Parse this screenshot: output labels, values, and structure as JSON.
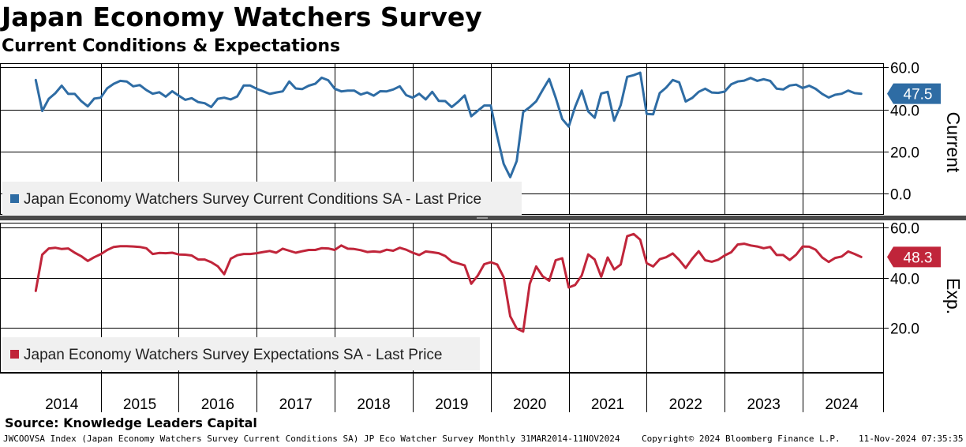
{
  "header": {
    "title": "Japan Economy Watchers Survey",
    "subtitle": "Current Conditions & Expectations"
  },
  "footer": {
    "source": "Source: Knowledge Leaders Capital",
    "index_line": "JWCOOVSA Index (Japan Economy Watchers Survey Current Conditions SA) JP Eco Watcher Survey  Monthly 31MAR2014-11NOV2024",
    "copyright": "Copyright© 2024 Bloomberg Finance L.P.",
    "timestamp": "11-Nov-2024 07:35:35"
  },
  "chart_data": [
    {
      "type": "line",
      "panel": "top",
      "ylabel": "Current",
      "ylim": [
        -10,
        62
      ],
      "yticks": [
        "60.0",
        "40.0",
        "20.0",
        "0.0"
      ],
      "ytick_values": [
        60,
        40,
        20,
        0
      ],
      "grid": true,
      "legend_position": "bottom-left",
      "color": "#2e6ca4",
      "last_value_label": "47.5",
      "series": [
        {
          "name": "Japan Economy Watchers Survey Current Conditions SA - Last Price",
          "x": [
            "2014-03",
            "2014-04",
            "2014-05",
            "2014-06",
            "2014-07",
            "2014-08",
            "2014-09",
            "2014-10",
            "2014-11",
            "2014-12",
            "2015-01",
            "2015-02",
            "2015-03",
            "2015-04",
            "2015-05",
            "2015-06",
            "2015-07",
            "2015-08",
            "2015-09",
            "2015-10",
            "2015-11",
            "2015-12",
            "2016-01",
            "2016-02",
            "2016-03",
            "2016-04",
            "2016-05",
            "2016-06",
            "2016-07",
            "2016-08",
            "2016-09",
            "2016-10",
            "2016-11",
            "2016-12",
            "2017-01",
            "2017-02",
            "2017-03",
            "2017-04",
            "2017-05",
            "2017-06",
            "2017-07",
            "2017-08",
            "2017-09",
            "2017-10",
            "2017-11",
            "2017-12",
            "2018-01",
            "2018-02",
            "2018-03",
            "2018-04",
            "2018-05",
            "2018-06",
            "2018-07",
            "2018-08",
            "2018-09",
            "2018-10",
            "2018-11",
            "2018-12",
            "2019-01",
            "2019-02",
            "2019-03",
            "2019-04",
            "2019-05",
            "2019-06",
            "2019-07",
            "2019-08",
            "2019-09",
            "2019-10",
            "2019-11",
            "2019-12",
            "2020-01",
            "2020-02",
            "2020-03",
            "2020-04",
            "2020-05",
            "2020-06",
            "2020-07",
            "2020-08",
            "2020-09",
            "2020-10",
            "2020-11",
            "2020-12",
            "2021-01",
            "2021-02",
            "2021-03",
            "2021-04",
            "2021-05",
            "2021-06",
            "2021-07",
            "2021-08",
            "2021-09",
            "2021-10",
            "2021-11",
            "2021-12",
            "2022-01",
            "2022-02",
            "2022-03",
            "2022-04",
            "2022-05",
            "2022-06",
            "2022-07",
            "2022-08",
            "2022-09",
            "2022-10",
            "2022-11",
            "2022-12",
            "2023-01",
            "2023-02",
            "2023-03",
            "2023-04",
            "2023-05",
            "2023-06",
            "2023-07",
            "2023-08",
            "2023-09",
            "2023-10",
            "2023-11",
            "2023-12",
            "2024-01",
            "2024-02",
            "2024-03",
            "2024-04",
            "2024-05",
            "2024-06",
            "2024-07",
            "2024-08",
            "2024-09",
            "2024-10"
          ],
          "values": [
            54.0,
            39.3,
            45.1,
            47.7,
            51.3,
            47.4,
            47.4,
            44.0,
            41.5,
            45.2,
            45.6,
            50.1,
            52.2,
            53.6,
            53.3,
            51.0,
            51.6,
            49.3,
            47.5,
            48.2,
            46.1,
            48.7,
            46.6,
            44.6,
            45.4,
            43.5,
            43.0,
            41.2,
            45.1,
            45.6,
            44.8,
            46.2,
            51.4,
            51.4,
            49.8,
            48.6,
            47.4,
            48.1,
            48.6,
            53.3,
            50.0,
            49.7,
            51.3,
            52.2,
            55.1,
            53.9,
            49.9,
            48.6,
            49.0,
            49.0,
            47.1,
            48.1,
            46.6,
            48.7,
            48.6,
            49.5,
            51.0,
            46.8,
            45.6,
            47.5,
            44.8,
            48.4,
            44.1,
            44.0,
            41.2,
            43.7,
            46.7,
            36.8,
            39.4,
            41.9,
            41.9,
            27.4,
            14.2,
            7.9,
            15.5,
            38.8,
            41.1,
            43.9,
            49.3,
            54.5,
            45.6,
            35.5,
            31.9,
            41.3,
            49.0,
            39.1,
            36.1,
            47.6,
            48.4,
            34.7,
            42.1,
            55.5,
            56.3,
            57.5,
            37.9,
            37.7,
            47.8,
            50.4,
            54.0,
            52.9,
            43.8,
            45.5,
            48.4,
            49.9,
            48.1,
            47.9,
            48.5,
            52.0,
            53.3,
            53.7,
            55.0,
            53.6,
            54.4,
            53.6,
            49.9,
            49.5,
            51.4,
            51.8,
            50.2,
            51.3,
            49.8,
            47.4,
            45.7,
            47.0,
            47.5,
            49.0,
            47.8,
            47.5
          ]
        }
      ]
    },
    {
      "type": "line",
      "panel": "bottom",
      "ylabel": "Exp.",
      "ylim": [
        2,
        62
      ],
      "yticks": [
        "60.0",
        "40.0",
        "20.0"
      ],
      "ytick_values": [
        60,
        40,
        20
      ],
      "grid": true,
      "legend_position": "bottom-left",
      "color": "#c0253a",
      "last_value_label": "48.3",
      "series": [
        {
          "name": "Japan Economy Watchers Survey Expectations SA - Last Price",
          "x": [
            "2014-03",
            "2014-04",
            "2014-05",
            "2014-06",
            "2014-07",
            "2014-08",
            "2014-09",
            "2014-10",
            "2014-11",
            "2014-12",
            "2015-01",
            "2015-02",
            "2015-03",
            "2015-04",
            "2015-05",
            "2015-06",
            "2015-07",
            "2015-08",
            "2015-09",
            "2015-10",
            "2015-11",
            "2015-12",
            "2016-01",
            "2016-02",
            "2016-03",
            "2016-04",
            "2016-05",
            "2016-06",
            "2016-07",
            "2016-08",
            "2016-09",
            "2016-10",
            "2016-11",
            "2016-12",
            "2017-01",
            "2017-02",
            "2017-03",
            "2017-04",
            "2017-05",
            "2017-06",
            "2017-07",
            "2017-08",
            "2017-09",
            "2017-10",
            "2017-11",
            "2017-12",
            "2018-01",
            "2018-02",
            "2018-03",
            "2018-04",
            "2018-05",
            "2018-06",
            "2018-07",
            "2018-08",
            "2018-09",
            "2018-10",
            "2018-11",
            "2018-12",
            "2019-01",
            "2019-02",
            "2019-03",
            "2019-04",
            "2019-05",
            "2019-06",
            "2019-07",
            "2019-08",
            "2019-09",
            "2019-10",
            "2019-11",
            "2019-12",
            "2020-01",
            "2020-02",
            "2020-03",
            "2020-04",
            "2020-05",
            "2020-06",
            "2020-07",
            "2020-08",
            "2020-09",
            "2020-10",
            "2020-11",
            "2020-12",
            "2021-01",
            "2021-02",
            "2021-03",
            "2021-04",
            "2021-05",
            "2021-06",
            "2021-07",
            "2021-08",
            "2021-09",
            "2021-10",
            "2021-11",
            "2021-12",
            "2022-01",
            "2022-02",
            "2022-03",
            "2022-04",
            "2022-05",
            "2022-06",
            "2022-07",
            "2022-08",
            "2022-09",
            "2022-10",
            "2022-11",
            "2022-12",
            "2023-01",
            "2023-02",
            "2023-03",
            "2023-04",
            "2023-05",
            "2023-06",
            "2023-07",
            "2023-08",
            "2023-09",
            "2023-10",
            "2023-11",
            "2023-12",
            "2024-01",
            "2024-02",
            "2024-03",
            "2024-04",
            "2024-05",
            "2024-06",
            "2024-07",
            "2024-08",
            "2024-09",
            "2024-10"
          ],
          "values": [
            34.7,
            49.2,
            51.7,
            52.0,
            51.5,
            51.7,
            50.0,
            48.6,
            46.7,
            48.2,
            49.4,
            51.1,
            52.3,
            52.6,
            52.6,
            52.5,
            52.3,
            51.8,
            49.5,
            49.9,
            49.8,
            50.0,
            49.3,
            49.2,
            48.9,
            47.3,
            47.3,
            46.2,
            44.6,
            41.4,
            47.6,
            49.0,
            49.5,
            49.5,
            49.8,
            50.3,
            50.7,
            50.0,
            51.6,
            50.8,
            50.0,
            50.6,
            51.1,
            51.1,
            51.8,
            51.7,
            51.1,
            52.9,
            51.6,
            51.5,
            51.0,
            50.3,
            50.5,
            50.3,
            51.2,
            50.8,
            52.0,
            51.2,
            50.0,
            49.1,
            50.5,
            50.2,
            49.8,
            48.7,
            46.5,
            45.7,
            44.9,
            37.6,
            40.8,
            45.4,
            46.2,
            45.3,
            40.2,
            24.6,
            19.7,
            18.5,
            37.5,
            44.5,
            40.6,
            38.8,
            47.0,
            47.8,
            36.1,
            37.1,
            40.9,
            49.3,
            47.3,
            40.4,
            48.1,
            43.3,
            45.3,
            56.6,
            57.5,
            55.2,
            45.8,
            44.5,
            47.4,
            48.2,
            49.7,
            47.1,
            43.9,
            47.6,
            50.6,
            47.0,
            46.4,
            47.2,
            48.9,
            50.2,
            53.3,
            53.6,
            52.9,
            52.5,
            51.8,
            52.3,
            49.1,
            49.1,
            47.1,
            49.2,
            52.5,
            52.4,
            51.2,
            48.1,
            46.3,
            47.9,
            48.5,
            50.5,
            49.5,
            48.3
          ]
        }
      ]
    }
  ],
  "x_axis": {
    "year_labels": [
      "2014",
      "2015",
      "2016",
      "2017",
      "2018",
      "2019",
      "2020",
      "2021",
      "2022",
      "2023",
      "2024"
    ]
  }
}
